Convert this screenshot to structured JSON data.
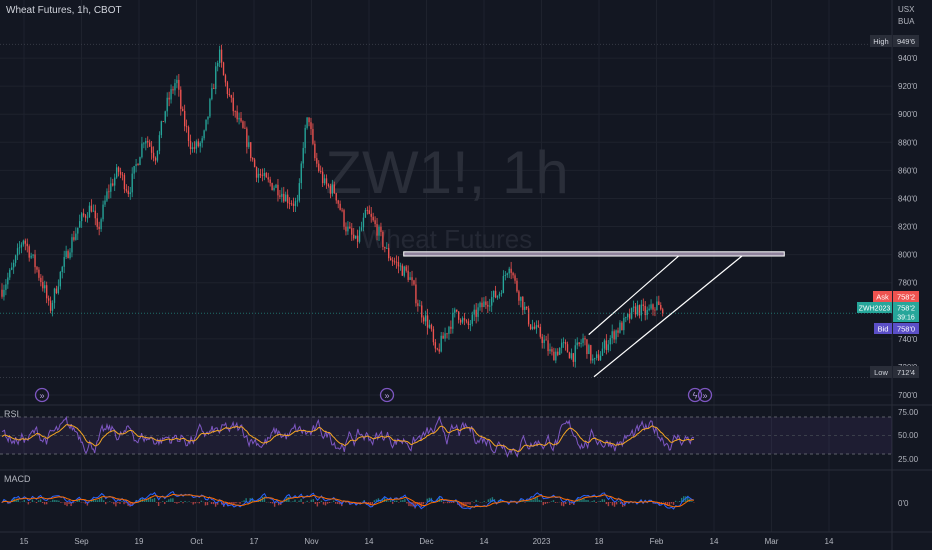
{
  "symbol": {
    "title": "Wheat Futures, 1h, CBOT",
    "watermark_ticker": "ZW1!, 1h",
    "watermark_name": "Wheat Futures"
  },
  "scale": {
    "currency": "USX",
    "unit": "BUA"
  },
  "badges": {
    "high": {
      "label": "High",
      "value": "949'6"
    },
    "low": {
      "label": "Low",
      "value": "712'4"
    },
    "ask": {
      "label": "Ask",
      "value": "758'2"
    },
    "last": {
      "label": "ZWH2023",
      "value": "758'2",
      "countdown": "39:16"
    },
    "bid": {
      "label": "Bid",
      "value": "758'0"
    }
  },
  "colors": {
    "background": "#131722",
    "up": "#26a69a",
    "down": "#ef5350",
    "rsi": "#7e57c2",
    "rsi_ma": "#f5a623",
    "macd": "#2962ff",
    "signal": "#ff6d00",
    "badge_high_low": "#2a2e39",
    "ask": "#ef5350",
    "bid": "#5b4fc7",
    "last": "#26a69a",
    "zone": "#b8a7c4"
  },
  "chart_data": {
    "type": "candlestick",
    "title": "Wheat Futures, 1h, CBOT",
    "ylim": [
      700,
      960
    ],
    "price_ticks": [
      "940'0",
      "920'0",
      "900'0",
      "880'0",
      "860'0",
      "840'0",
      "820'0",
      "800'0",
      "780'0",
      "740'0",
      "720'0",
      "700'0"
    ],
    "x_ticks": [
      "15",
      "Sep",
      "19",
      "Oct",
      "17",
      "Nov",
      "14",
      "Dec",
      "14",
      "2023",
      "18",
      "Feb",
      "14",
      "Mar",
      "14"
    ],
    "path": [
      {
        "x": 0,
        "y": 775
      },
      {
        "x": 2,
        "y": 790
      },
      {
        "x": 4,
        "y": 812
      },
      {
        "x": 6,
        "y": 795
      },
      {
        "x": 8,
        "y": 776
      },
      {
        "x": 9,
        "y": 760
      },
      {
        "x": 11,
        "y": 786
      },
      {
        "x": 13,
        "y": 808
      },
      {
        "x": 15,
        "y": 825
      },
      {
        "x": 17,
        "y": 835
      },
      {
        "x": 18,
        "y": 815
      },
      {
        "x": 20,
        "y": 845
      },
      {
        "x": 22,
        "y": 860
      },
      {
        "x": 24,
        "y": 845
      },
      {
        "x": 26,
        "y": 872
      },
      {
        "x": 27,
        "y": 885
      },
      {
        "x": 29,
        "y": 870
      },
      {
        "x": 31,
        "y": 905
      },
      {
        "x": 33,
        "y": 925
      },
      {
        "x": 34,
        "y": 900
      },
      {
        "x": 36,
        "y": 875
      },
      {
        "x": 38,
        "y": 880
      },
      {
        "x": 40,
        "y": 920
      },
      {
        "x": 41,
        "y": 945
      },
      {
        "x": 42,
        "y": 925
      },
      {
        "x": 44,
        "y": 900
      },
      {
        "x": 46,
        "y": 885
      },
      {
        "x": 48,
        "y": 860
      },
      {
        "x": 50,
        "y": 852
      },
      {
        "x": 52,
        "y": 848
      },
      {
        "x": 54,
        "y": 840
      },
      {
        "x": 56,
        "y": 835
      },
      {
        "x": 57,
        "y": 880
      },
      {
        "x": 58,
        "y": 900
      },
      {
        "x": 59,
        "y": 870
      },
      {
        "x": 61,
        "y": 850
      },
      {
        "x": 63,
        "y": 845
      },
      {
        "x": 65,
        "y": 820
      },
      {
        "x": 67,
        "y": 808
      },
      {
        "x": 69,
        "y": 830
      },
      {
        "x": 71,
        "y": 818
      },
      {
        "x": 73,
        "y": 800
      },
      {
        "x": 75,
        "y": 792
      },
      {
        "x": 77,
        "y": 785
      },
      {
        "x": 79,
        "y": 762
      },
      {
        "x": 81,
        "y": 748
      },
      {
        "x": 82,
        "y": 728
      },
      {
        "x": 84,
        "y": 745
      },
      {
        "x": 86,
        "y": 760
      },
      {
        "x": 88,
        "y": 748
      },
      {
        "x": 90,
        "y": 760
      },
      {
        "x": 92,
        "y": 768
      },
      {
        "x": 94,
        "y": 772
      },
      {
        "x": 96,
        "y": 795
      },
      {
        "x": 97,
        "y": 780
      },
      {
        "x": 98,
        "y": 770
      },
      {
        "x": 100,
        "y": 750
      },
      {
        "x": 102,
        "y": 742
      },
      {
        "x": 104,
        "y": 728
      },
      {
        "x": 106,
        "y": 735
      },
      {
        "x": 108,
        "y": 728
      },
      {
        "x": 110,
        "y": 740
      },
      {
        "x": 112,
        "y": 722
      },
      {
        "x": 114,
        "y": 735
      },
      {
        "x": 116,
        "y": 745
      },
      {
        "x": 118,
        "y": 752
      },
      {
        "x": 120,
        "y": 762
      },
      {
        "x": 122,
        "y": 758
      },
      {
        "x": 124,
        "y": 765
      },
      {
        "x": 125,
        "y": 755
      }
    ],
    "high": {
      "x": 41,
      "y": 949.75
    },
    "low": {
      "x": 112,
      "y": 712.5
    },
    "last_price": 758.25,
    "zone": {
      "x0": 76,
      "x1": 148,
      "y0": 799,
      "y1": 802
    },
    "channel_upper": {
      "x0": 111,
      "y0": 743,
      "x1": 128,
      "y1": 799
    },
    "channel_lower": {
      "x0": 112,
      "y0": 713,
      "x1": 140,
      "y1": 799
    },
    "xlim": [
      0,
      168
    ]
  },
  "rsi": {
    "label": "RSI",
    "ticks": [
      "75.00",
      "50.00",
      "25.00"
    ],
    "ylim": [
      15,
      85
    ],
    "upper": 70,
    "lower": 30
  },
  "macd": {
    "label": "MACD",
    "ticks": [
      "0'0"
    ]
  }
}
